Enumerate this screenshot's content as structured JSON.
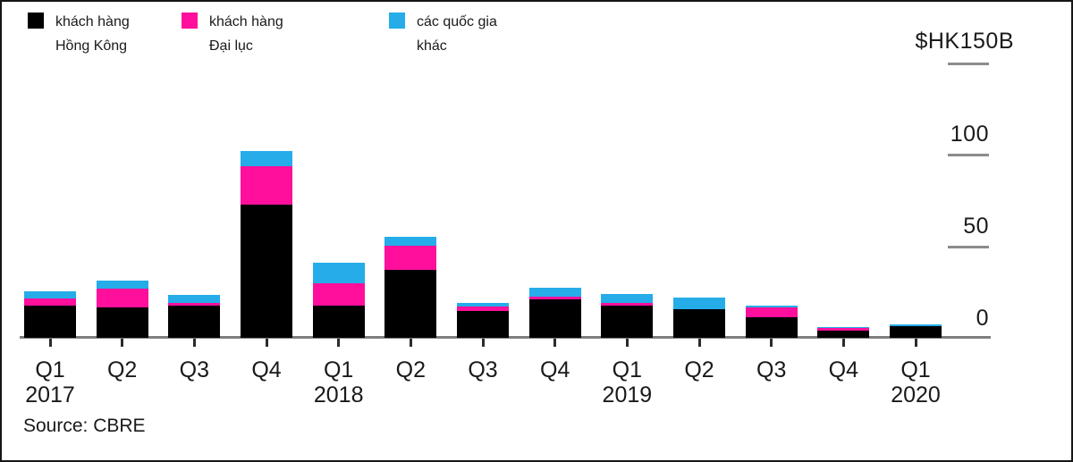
{
  "legend": {
    "items": [
      {
        "line1": "khách hàng",
        "line2": "Hồng Kông",
        "color": "#000000"
      },
      {
        "line1": "khách hàng",
        "line2": "Đại lục",
        "color": "#ff0f9c"
      },
      {
        "line1": "các quốc gia",
        "line2": "khác",
        "color": "#25ace9"
      }
    ]
  },
  "y_axis": {
    "top_label": "$HK150B",
    "tick_labels": [
      "100",
      "50",
      "0"
    ]
  },
  "x_axis": {
    "quarter_labels": [
      "Q1",
      "Q2",
      "Q3",
      "Q4",
      "Q1",
      "Q2",
      "Q3",
      "Q4",
      "Q1",
      "Q2",
      "Q3",
      "Q4",
      "Q1"
    ],
    "year_labels": [
      {
        "text": "2017",
        "index": 0
      },
      {
        "text": "2018",
        "index": 4
      },
      {
        "text": "2019",
        "index": 8
      },
      {
        "text": "2020",
        "index": 12
      }
    ]
  },
  "source": "Source: CBRE",
  "colors": {
    "axis_line": "#7f7f7f",
    "axis_tick": "#8c8c8c",
    "text": "#1a1a1a"
  },
  "chart_data": {
    "type": "bar",
    "stacked": true,
    "unit": "$HK billions",
    "title": "",
    "xlabel": "",
    "ylabel": "$HK150B",
    "ylim": [
      0,
      150
    ],
    "yticks": [
      0,
      50,
      100,
      150
    ],
    "grid": false,
    "legend_position": "top-left",
    "categories": [
      "Q1 2017",
      "Q2 2017",
      "Q3 2017",
      "Q4 2017",
      "Q1 2018",
      "Q2 2018",
      "Q3 2018",
      "Q4 2018",
      "Q1 2019",
      "Q2 2019",
      "Q3 2019",
      "Q4 2019",
      "Q1 2020"
    ],
    "series": [
      {
        "name": "khách hàng Hồng Kông",
        "color": "#000000",
        "values": [
          18,
          17,
          18,
          73,
          18,
          37.5,
          15,
          21,
          18,
          16,
          11.5,
          4,
          6.5
        ]
      },
      {
        "name": "khách hàng Đại lục",
        "color": "#ff0f9c",
        "values": [
          3.5,
          10,
          1.5,
          21,
          12,
          13,
          2.5,
          1.5,
          1.5,
          0,
          5.5,
          1.5,
          0
        ]
      },
      {
        "name": "các quốc gia khác",
        "color": "#25ace9",
        "values": [
          4,
          4.5,
          4,
          8,
          11,
          5,
          2,
          5,
          4.5,
          6,
          1,
          0.5,
          1
        ]
      }
    ]
  }
}
